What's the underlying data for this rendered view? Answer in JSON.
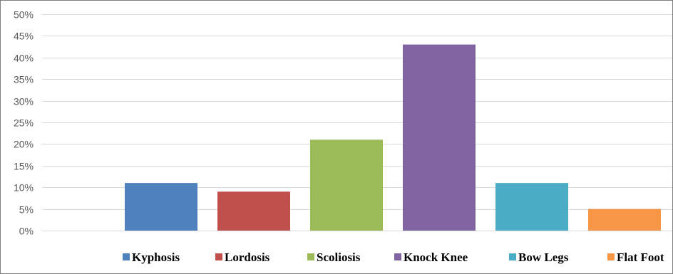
{
  "chart_data": {
    "type": "bar",
    "categories": [
      "Kyphosis",
      "Lordosis",
      "Scoliosis",
      "Knock Knee",
      "Bow Legs",
      "Flat Foot"
    ],
    "values": [
      11,
      9,
      21,
      43,
      11,
      5
    ],
    "colors": [
      "#4f81bd",
      "#c0504d",
      "#9bbb59",
      "#8064a2",
      "#4bacc6",
      "#f79646"
    ],
    "ylim": [
      0,
      50
    ],
    "yticks": [
      0,
      5,
      10,
      15,
      20,
      25,
      30,
      35,
      40,
      45,
      50
    ],
    "ytick_labels": [
      "0%",
      "5%",
      "10%",
      "15%",
      "20%",
      "25%",
      "30%",
      "35%",
      "40%",
      "45%",
      "50%"
    ],
    "grid": true,
    "legend_position": "bottom",
    "gridline_color": "#d9d9d9"
  }
}
